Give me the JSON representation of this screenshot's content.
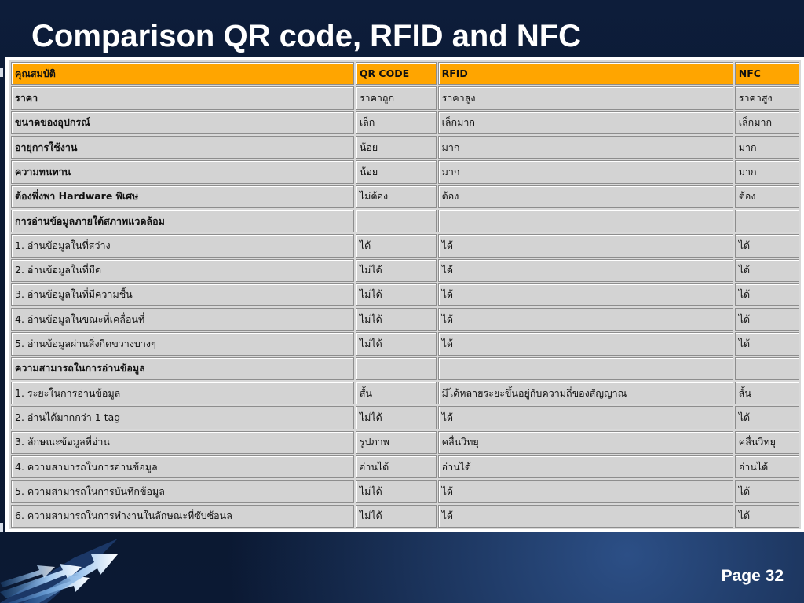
{
  "slide": {
    "title": "Comparison QR code, RFID and NFC",
    "page_label": "Page 32"
  },
  "table": {
    "header": [
      "คุณสมบัติ",
      "QR CODE",
      "RFID",
      "NFC"
    ],
    "rows": [
      {
        "cells": [
          "ราคา",
          "ราคาถูก",
          "ราคาสูง",
          "ราคาสูง"
        ],
        "bold_first": true
      },
      {
        "cells": [
          "ขนาดของอุปกรณ์",
          "เล็ก",
          "เล็กมาก",
          "เล็กมาก"
        ],
        "bold_first": true
      },
      {
        "cells": [
          "อายุการใช้งาน",
          "น้อย",
          "มาก",
          "มาก"
        ],
        "bold_first": true
      },
      {
        "cells": [
          "ความทนทาน",
          "น้อย",
          "มาก",
          "มาก"
        ],
        "bold_first": true
      },
      {
        "cells": [
          "ต้องพึ่งพา Hardware พิเศษ",
          "ไม่ต้อง",
          "ต้อง",
          "ต้อง"
        ],
        "bold_first": true
      },
      {
        "cells": [
          "การอ่านข้อมูลภายใต้สภาพแวดล้อม",
          "",
          "",
          ""
        ],
        "bold_first": true
      },
      {
        "cells": [
          "1. อ่านข้อมูลในที่สว่าง",
          "ได้",
          "ได้",
          "ได้"
        ],
        "bold_first": false
      },
      {
        "cells": [
          "2. อ่านข้อมูลในที่มืด",
          "ไม่ได้",
          "ได้",
          "ได้"
        ],
        "bold_first": false
      },
      {
        "cells": [
          "3. อ่านข้อมูลในที่มีความชื้น",
          "ไม่ได้",
          "ได้",
          "ได้"
        ],
        "bold_first": false
      },
      {
        "cells": [
          "4. อ่านข้อมูลในขณะที่เคลื่อนที่",
          "ไม่ได้",
          "ได้",
          "ได้"
        ],
        "bold_first": false
      },
      {
        "cells": [
          "5. อ่านข้อมูลผ่านสิ่งกีดขวางบางๆ",
          "ไม่ได้",
          "ได้",
          "ได้"
        ],
        "bold_first": false
      },
      {
        "cells": [
          "ความสามารถในการอ่านข้อมูล",
          "",
          "",
          ""
        ],
        "bold_first": true
      },
      {
        "cells": [
          "1. ระยะในการอ่านข้อมูล",
          "สั้น",
          "มีได้หลายระยะขึ้นอยู่กับความถี่ของสัญญาณ",
          "สั้น"
        ],
        "bold_first": false
      },
      {
        "cells": [
          "2. อ่านได้มากกว่า 1 tag",
          "ไม่ได้",
          "ได้",
          "ได้"
        ],
        "bold_first": false
      },
      {
        "cells": [
          "3. ลักษณะข้อมูลที่อ่าน",
          "รูปภาพ",
          "คลื่นวิทยุ",
          "คลื่นวิทยุ"
        ],
        "bold_first": false
      },
      {
        "cells": [
          "4. ความสามารถในการอ่านข้อมูล",
          "อ่านได้",
          "อ่านได้",
          "อ่านได้"
        ],
        "bold_first": false
      },
      {
        "cells": [
          "5. ความสามารถในการบันทึกข้อมูล",
          "ไม่ได้",
          "ได้",
          "ได้"
        ],
        "bold_first": false
      },
      {
        "cells": [
          "6. ความสามารถในการทำงานในลักษณะที่ซับซ้อนล",
          "ไม่ได้",
          "ได้",
          "ได้"
        ],
        "bold_first": false
      }
    ]
  },
  "colors": {
    "header_fill": "#ffa500",
    "cell_fill": "#d3d3d3",
    "background": "#0b1a33",
    "title_text": "#ffffff"
  },
  "icons": {
    "corner_graphic": "arrows-icon"
  }
}
